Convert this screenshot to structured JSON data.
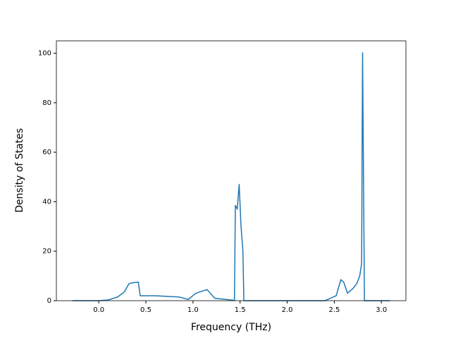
{
  "chart_data": {
    "type": "line",
    "x_label": "Frequency (THz)",
    "y_label": "Density of States",
    "series": [
      {
        "color": "#1f77b4",
        "x": [
          -0.28,
          0.0,
          0.1,
          0.2,
          0.27,
          0.32,
          0.35,
          0.42,
          0.44,
          0.6,
          0.85,
          0.95,
          1.03,
          1.15,
          1.23,
          1.44,
          1.45,
          1.47,
          1.49,
          1.51,
          1.53,
          1.54,
          2.4,
          2.52,
          2.57,
          2.6,
          2.64,
          2.7,
          2.74,
          2.77,
          2.79,
          2.8,
          2.82,
          3.09
        ],
        "values": [
          0,
          0,
          0.3,
          1.5,
          3.5,
          6.8,
          7.2,
          7.5,
          2,
          2,
          1.5,
          0.5,
          3,
          4.5,
          1,
          0.1,
          38.5,
          37,
          47,
          30,
          20,
          0,
          0,
          2,
          8.5,
          7.5,
          3,
          5,
          7,
          10,
          15,
          100.2,
          0,
          0
        ]
      }
    ],
    "xlim": [
      -0.45,
      3.26
    ],
    "ylim": [
      0,
      105
    ],
    "xticks": [
      {
        "value": 0,
        "label": "0.0"
      },
      0.5,
      {
        "value": 1,
        "label": "1.0"
      },
      1.5,
      {
        "value": 2,
        "label": "2.0"
      },
      2.5,
      {
        "value": 3,
        "label": "3.0"
      }
    ],
    "yticks": [
      0,
      20,
      40,
      60,
      80,
      100
    ]
  }
}
